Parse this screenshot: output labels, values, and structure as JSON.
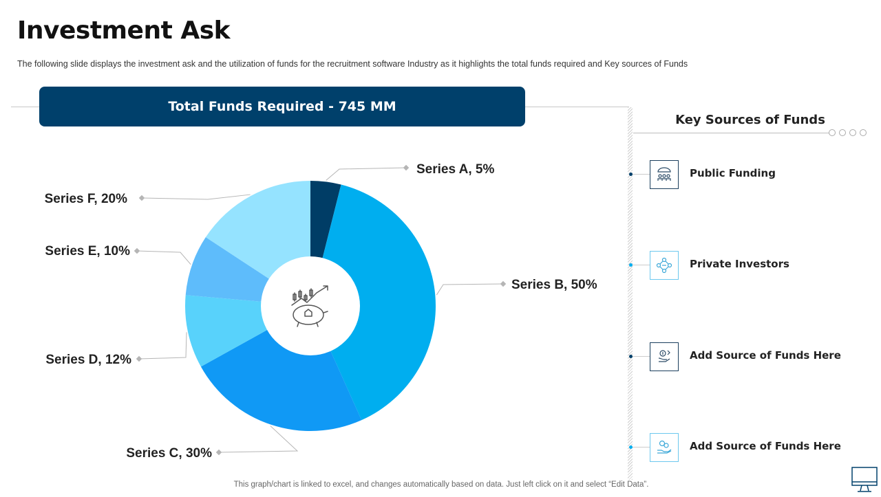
{
  "title": "Investment Ask",
  "subtitle": "The following  slide displays the investment  ask and the utilization of funds for the recruitment  software  Industry  as it highlights  the total funds  required   and  Key sources of Funds",
  "banner": "Total Funds Required - 745 MM",
  "chart_data": {
    "type": "donut",
    "title": "Total Funds Required - 745 MM",
    "series": [
      {
        "name": "Series A",
        "value": 5,
        "label": "Series A, 5%",
        "color": "#003d66"
      },
      {
        "name": "Series B",
        "value": 50,
        "label": "Series B, 50%",
        "color": "#00aeef"
      },
      {
        "name": "Series C",
        "value": 30,
        "label": "Series C, 30%",
        "color": "#1099f5"
      },
      {
        "name": "Series D",
        "value": 12,
        "label": "Series D, 12%",
        "color": "#58d2fb"
      },
      {
        "name": "Series E",
        "value": 10,
        "label": "Series E, 10%",
        "color": "#5ebcfb"
      },
      {
        "name": "Series F",
        "value": 20,
        "label": "Series F, 20%",
        "color": "#95e3ff"
      }
    ],
    "center_icon": "piggy-bank-growth-icon"
  },
  "sources": {
    "title": "Key Sources of Funds",
    "items": [
      {
        "label": "Public Funding",
        "icon": "people-funding-icon",
        "dot_color": "#00406b"
      },
      {
        "label": "Private Investors",
        "icon": "investors-network-icon",
        "dot_color": "#00aeef"
      },
      {
        "label": "Add Source of Funds Here",
        "icon": "money-flow-icon",
        "dot_color": "#00406b"
      },
      {
        "label": "Add Source of Funds Here",
        "icon": "hand-coin-icon",
        "dot_color": "#00aeef"
      }
    ]
  },
  "footer": "This graph/chart is linked to excel,  and changes automatically based on data. Just left click on it and select “Edit Data”."
}
